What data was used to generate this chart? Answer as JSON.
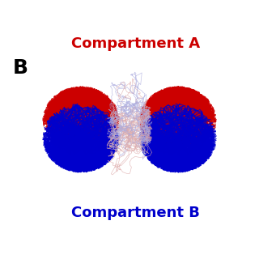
{
  "title_label": "B",
  "compartment_a_label": "Compartment A",
  "compartment_b_label": "Compartment B",
  "compartment_a_color": "#CC0000",
  "compartment_b_color": "#0000CC",
  "faint_color": "#DDAAAA",
  "faint_color2": "#AAAADD",
  "background_color": "#FFFFFF",
  "label_a_fontsize": 13,
  "label_b_fontsize": 13,
  "title_fontsize": 18,
  "figsize": [
    3.2,
    3.2
  ],
  "dpi": 100
}
